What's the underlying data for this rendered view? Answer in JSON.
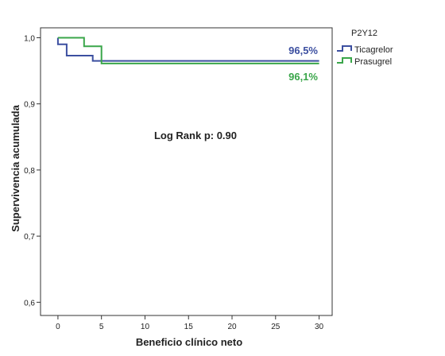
{
  "chart_data": {
    "type": "line",
    "subtype": "kaplan-meier step",
    "xlabel": "Beneficio clínico neto",
    "ylabel": "Supervivencia acumulada",
    "xlim": [
      -2,
      31.5
    ],
    "ylim": [
      0.58,
      1.015
    ],
    "x_ticks": [
      0,
      5,
      10,
      15,
      20,
      25,
      30
    ],
    "y_ticks": [
      0.6,
      0.7,
      0.8,
      0.9,
      1.0
    ],
    "x_tick_labels": [
      "0",
      "5",
      "10",
      "15",
      "20",
      "25",
      "30"
    ],
    "y_tick_labels": [
      "0,6",
      "0,7",
      "0,8",
      "0,9",
      "1,0"
    ],
    "grid": false,
    "legend_title": "P2Y12",
    "legend_position": "right-top, outside",
    "series": [
      {
        "name": "Ticagrelor",
        "color": "#3c4fa0",
        "steps": [
          [
            0,
            1.0
          ],
          [
            0,
            0.99
          ],
          [
            1,
            0.99
          ],
          [
            1,
            0.973
          ],
          [
            4,
            0.973
          ],
          [
            4,
            0.965
          ],
          [
            30,
            0.965
          ]
        ],
        "end_label": "96,5%"
      },
      {
        "name": "Prasugrel",
        "color": "#3aa64a",
        "steps": [
          [
            0,
            1.0
          ],
          [
            3,
            1.0
          ],
          [
            3,
            0.987
          ],
          [
            5,
            0.987
          ],
          [
            5,
            0.961
          ],
          [
            30,
            0.961
          ]
        ],
        "end_label": "96,1%"
      }
    ],
    "annotations": [
      "Log Rank p: 0.90"
    ]
  }
}
